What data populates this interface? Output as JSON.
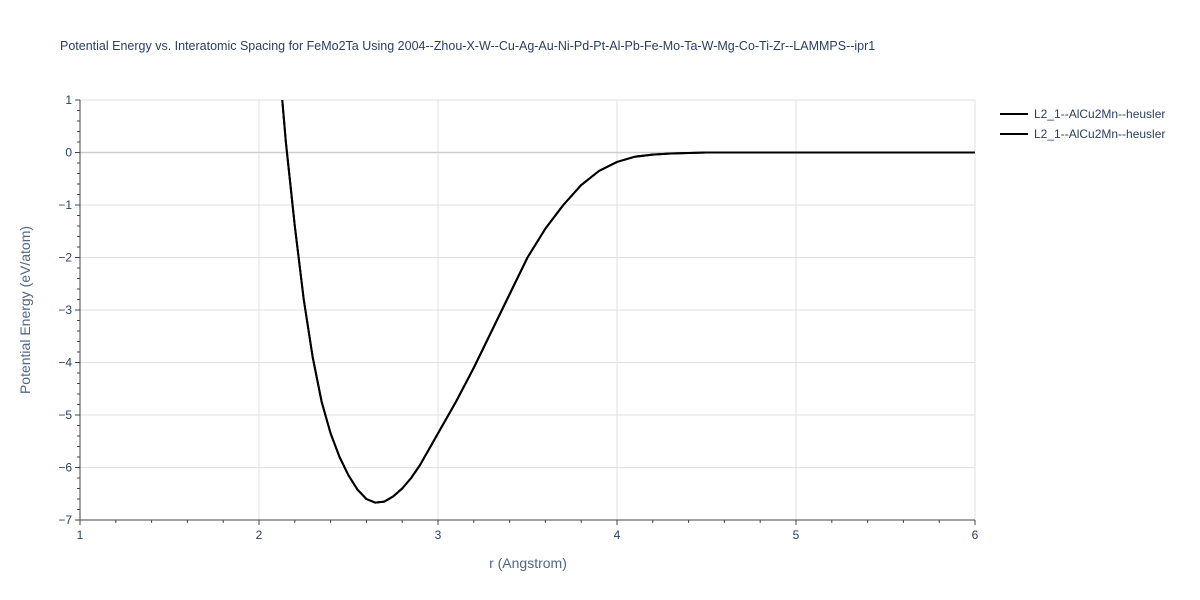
{
  "chart_data": {
    "type": "line",
    "title": "Potential Energy vs. Interatomic Spacing for FeMo2Ta Using 2004--Zhou-X-W--Cu-Ag-Au-Ni-Pd-Pt-Al-Pb-Fe-Mo-Ta-W-Mg-Co-Ti-Zr--LAMMPS--ipr1",
    "xlabel": "r (Angstrom)",
    "ylabel": "Potential Energy (eV/atom)",
    "xlim": [
      1,
      6
    ],
    "ylim": [
      -7,
      1
    ],
    "xticks": [
      1,
      2,
      3,
      4,
      5,
      6
    ],
    "yticks": [
      1,
      0,
      -1,
      -2,
      -3,
      -4,
      -5,
      -6,
      -7
    ],
    "xtick_labels": [
      "1",
      "2",
      "3",
      "4",
      "5",
      "6"
    ],
    "ytick_labels": [
      "1",
      "0",
      "−1",
      "−2",
      "−3",
      "−4",
      "−5",
      "−6",
      "−7"
    ],
    "grid": true,
    "legend_position": "top-right",
    "series": [
      {
        "name": "L2_1--AlCu2Mn--heusler",
        "color": "#000000",
        "x": [
          2.13,
          2.15,
          2.2,
          2.25,
          2.3,
          2.35,
          2.4,
          2.45,
          2.5,
          2.55,
          2.6,
          2.65,
          2.7,
          2.75,
          2.8,
          2.85,
          2.9,
          2.95,
          3.0,
          3.1,
          3.2,
          3.3,
          3.4,
          3.5,
          3.6,
          3.7,
          3.8,
          3.9,
          4.0,
          4.1,
          4.2,
          4.3,
          4.4,
          4.5,
          4.6,
          4.8,
          5.0,
          5.5,
          6.0
        ],
        "y": [
          1.0,
          0.2,
          -1.4,
          -2.8,
          -3.9,
          -4.75,
          -5.35,
          -5.8,
          -6.15,
          -6.42,
          -6.6,
          -6.67,
          -6.65,
          -6.55,
          -6.4,
          -6.2,
          -5.95,
          -5.65,
          -5.35,
          -4.75,
          -4.1,
          -3.4,
          -2.7,
          -2.0,
          -1.45,
          -1.0,
          -0.62,
          -0.35,
          -0.18,
          -0.08,
          -0.04,
          -0.02,
          -0.01,
          0.0,
          0.0,
          0.0,
          0.0,
          0.0,
          0.0
        ]
      },
      {
        "name": "L2_1--AlCu2Mn--heusler",
        "color": "#000000",
        "x": [
          2.13,
          2.15,
          2.2,
          2.25,
          2.3,
          2.35,
          2.4,
          2.45,
          2.5,
          2.55,
          2.6,
          2.65,
          2.7,
          2.75,
          2.8,
          2.85,
          2.9,
          2.95,
          3.0,
          3.1,
          3.2,
          3.3,
          3.4,
          3.5,
          3.6,
          3.7,
          3.8,
          3.9,
          4.0,
          4.1,
          4.2,
          4.3,
          4.4,
          4.5,
          4.6,
          4.8,
          5.0,
          5.5,
          6.0
        ],
        "y": [
          1.0,
          0.2,
          -1.4,
          -2.8,
          -3.9,
          -4.75,
          -5.35,
          -5.8,
          -6.15,
          -6.42,
          -6.6,
          -6.67,
          -6.65,
          -6.55,
          -6.4,
          -6.2,
          -5.95,
          -5.65,
          -5.35,
          -4.75,
          -4.1,
          -3.4,
          -2.7,
          -2.0,
          -1.45,
          -1.0,
          -0.62,
          -0.35,
          -0.18,
          -0.08,
          -0.04,
          -0.02,
          -0.01,
          0.0,
          0.0,
          0.0,
          0.0,
          0.0,
          0.0
        ]
      }
    ]
  }
}
